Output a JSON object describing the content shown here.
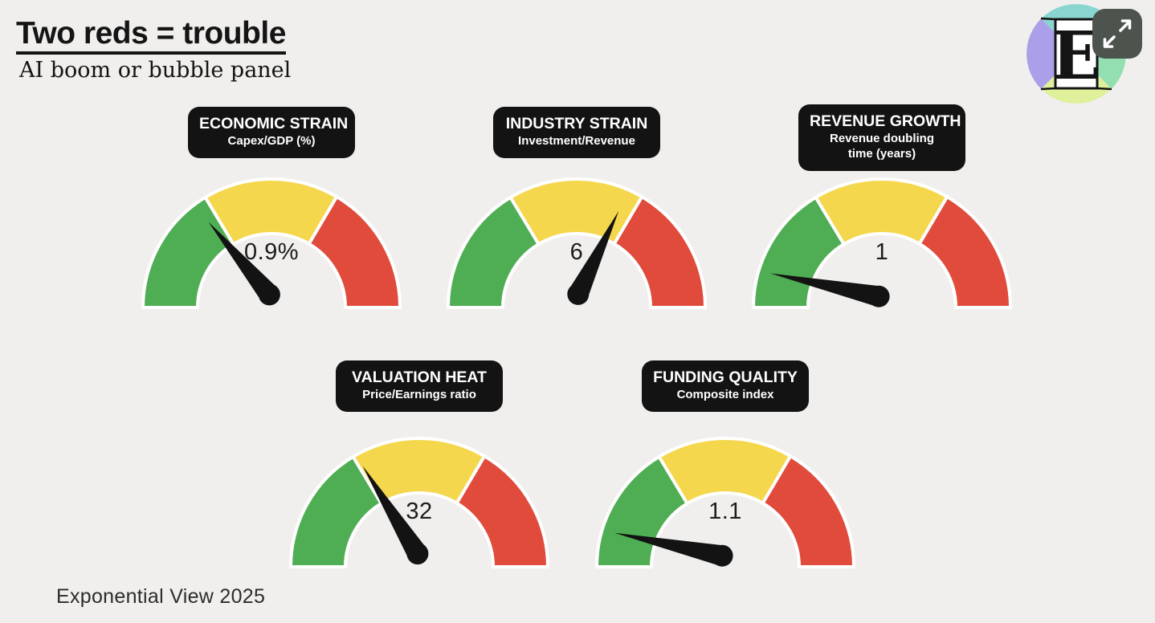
{
  "header": {
    "title": "Two reds = trouble",
    "subtitle": "AI boom or bubble panel"
  },
  "logo": {
    "letter": "E",
    "expand_icon": "expand-arrows",
    "quadrant_colors": {
      "top": "#89d6d1",
      "left": "#ab9fe9",
      "right": "#94dfb2",
      "bottom": "#dff09b"
    },
    "button_color": "#4d544e"
  },
  "theme": {
    "background": "#f0efed",
    "green": "#4fae54",
    "yellow": "#f5d74d",
    "red": "#e04b3c",
    "pill_bg": "#131313",
    "pill_text": "#ffffff",
    "needle": "#131313"
  },
  "footer": {
    "credit": "Exponential View 2025"
  },
  "chart_data": {
    "type": "gauge-panel",
    "title": "Two reds = trouble",
    "subtitle": "AI boom or bubble panel",
    "segments": [
      {
        "name": "green",
        "from_deg": 180,
        "to_deg": 121
      },
      {
        "name": "yellow",
        "from_deg": 121,
        "to_deg": 59.5
      },
      {
        "name": "red",
        "from_deg": 59.5,
        "to_deg": 0
      }
    ],
    "gauges": [
      {
        "title": "ECONOMIC STRAIN",
        "subtitle": "Capex/GDP (%)",
        "value": "0.9%",
        "zone": "green",
        "needle_angle_deg": 130
      },
      {
        "title": "INDUSTRY STRAIN",
        "subtitle": "Investment/Revenue",
        "value": "6",
        "zone": "yellow",
        "needle_angle_deg": 64
      },
      {
        "title": "REVENUE GROWTH",
        "subtitle": "Revenue doubling time (years)",
        "value": "1",
        "zone": "green",
        "needle_angle_deg": 168
      },
      {
        "title": "VALUATION HEAT",
        "subtitle": "Price/Earnings ratio",
        "value": "32",
        "zone": "green-yellow boundary",
        "needle_angle_deg": 122
      },
      {
        "title": "FUNDING QUALITY",
        "subtitle": "Composite index",
        "value": "1.1",
        "zone": "green",
        "needle_angle_deg": 168
      }
    ]
  }
}
